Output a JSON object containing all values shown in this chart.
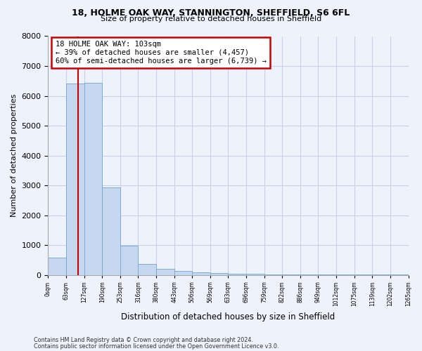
{
  "title_line1": "18, HOLME OAK WAY, STANNINGTON, SHEFFIELD, S6 6FL",
  "title_line2": "Size of property relative to detached houses in Sheffield",
  "xlabel": "Distribution of detached houses by size in Sheffield",
  "ylabel": "Number of detached properties",
  "bin_labels": [
    "0sqm",
    "63sqm",
    "127sqm",
    "190sqm",
    "253sqm",
    "316sqm",
    "380sqm",
    "443sqm",
    "506sqm",
    "569sqm",
    "633sqm",
    "696sqm",
    "759sqm",
    "822sqm",
    "886sqm",
    "949sqm",
    "1012sqm",
    "1075sqm",
    "1139sqm",
    "1202sqm",
    "1265sqm"
  ],
  "bin_counts": [
    570,
    6420,
    6430,
    2920,
    980,
    370,
    200,
    120,
    90,
    60,
    40,
    30,
    20,
    15,
    10,
    8,
    6,
    5,
    4,
    3
  ],
  "bar_color": "#c5d8f0",
  "bar_edge_color": "#7aadd4",
  "vline_bin": 1.65,
  "vline_color": "#cc0000",
  "annotation_title": "18 HOLME OAK WAY: 103sqm",
  "annotation_line2": "← 39% of detached houses are smaller (4,457)",
  "annotation_line3": "60% of semi-detached houses are larger (6,739) →",
  "annotation_box_color": "#cc0000",
  "annotation_bg": "#ffffff",
  "ylim": [
    0,
    8000
  ],
  "yticks": [
    0,
    1000,
    2000,
    3000,
    4000,
    5000,
    6000,
    7000,
    8000
  ],
  "footer_line1": "Contains HM Land Registry data © Crown copyright and database right 2024.",
  "footer_line2": "Contains public sector information licensed under the Open Government Licence v3.0.",
  "background_color": "#eef2fb",
  "grid_color": "#c8d0e8"
}
